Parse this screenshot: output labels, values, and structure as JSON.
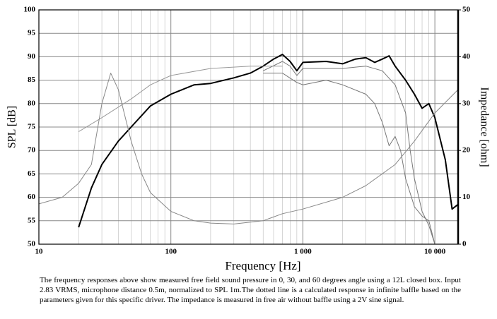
{
  "chart_data": {
    "type": "line",
    "x_label": "Frequency [Hz]",
    "y_label": "SPL [dB]",
    "y2_label": "Impedance [ohm]",
    "log_x": true,
    "grid": true,
    "xlim": [
      10,
      15000
    ],
    "xticks": [
      {
        "value": 10,
        "label": "10"
      },
      {
        "value": 100,
        "label": "100"
      },
      {
        "value": 1000,
        "label": "1 000"
      },
      {
        "value": 10000,
        "label": "10 000"
      }
    ],
    "ylim": [
      50,
      100
    ],
    "yticks": [
      50,
      55,
      60,
      65,
      70,
      75,
      80,
      85,
      90,
      95,
      100
    ],
    "y2lim": [
      0,
      50
    ],
    "y2ticks": [
      0,
      10,
      20,
      30,
      40,
      50
    ],
    "series": [
      {
        "color": "#000000",
        "x": [
          20,
          25,
          30,
          40,
          50,
          70,
          100,
          150,
          200,
          300,
          400,
          500,
          600,
          700,
          800,
          900,
          1000,
          1500,
          2000,
          2500,
          3000,
          3500,
          4000,
          4500,
          5000,
          6000,
          7000,
          8000,
          9000,
          10000,
          12000,
          13500,
          15000
        ],
        "values": [
          53.6,
          62,
          67,
          72,
          75,
          79.5,
          82,
          84,
          84.3,
          85.5,
          86.5,
          88,
          89.5,
          90.5,
          89,
          87,
          88.8,
          89,
          88.5,
          89.5,
          89.8,
          88.8,
          89.5,
          90.2,
          88,
          85,
          82,
          79,
          80,
          77,
          68,
          57.5,
          58.5
        ]
      },
      {
        "color": "#777777",
        "x": [
          500,
          700,
          800,
          900,
          1000,
          2000,
          3000,
          4000,
          5000,
          6000,
          6500,
          7000,
          8000,
          9000,
          10000
        ],
        "values": [
          87,
          89,
          88,
          86,
          87.5,
          87.5,
          88,
          87,
          84,
          78,
          70,
          64,
          57,
          54,
          50
        ]
      },
      {
        "color": "#777777",
        "x": [
          500,
          700,
          900,
          1000,
          1500,
          2000,
          3000,
          3500,
          4000,
          4500,
          5000,
          5500,
          6000,
          7000,
          8000,
          9000,
          10000
        ],
        "values": [
          86.5,
          86.5,
          84.5,
          84,
          85,
          84,
          82,
          80,
          76,
          71,
          73,
          70,
          64,
          58,
          56,
          55,
          50
        ]
      },
      {
        "color": "#999999",
        "x": [
          20,
          30,
          50,
          70,
          100,
          200,
          400,
          700
        ],
        "values": [
          74,
          77,
          81,
          84,
          86,
          87.5,
          88,
          88
        ]
      },
      {
        "color": "#888888",
        "axis": "y2",
        "x": [
          10,
          15,
          20,
          25,
          30,
          35,
          40,
          50,
          60,
          70,
          100,
          150,
          200,
          300,
          500,
          700,
          1000,
          2000,
          3000,
          5000,
          7000,
          10000,
          15000
        ],
        "values": [
          8.6,
          10,
          13,
          17,
          30,
          36.5,
          33,
          22,
          15,
          11,
          7,
          5,
          4.5,
          4.3,
          5,
          6.5,
          7.5,
          10,
          12.5,
          17,
          22,
          28,
          33
        ]
      }
    ],
    "caption": "The frequency responses above show measured free field sound pressure in 0, 30, and 60 degrees angle using a 12L closed box. Input 2.83 VRMS, microphone distance 0.5m, normalized to SPL 1m.The dotted line is a calculated response in infinite baffle based on the parameters given for this specific driver. The impedance is measured in free air without baffle using a 2V sine signal."
  }
}
